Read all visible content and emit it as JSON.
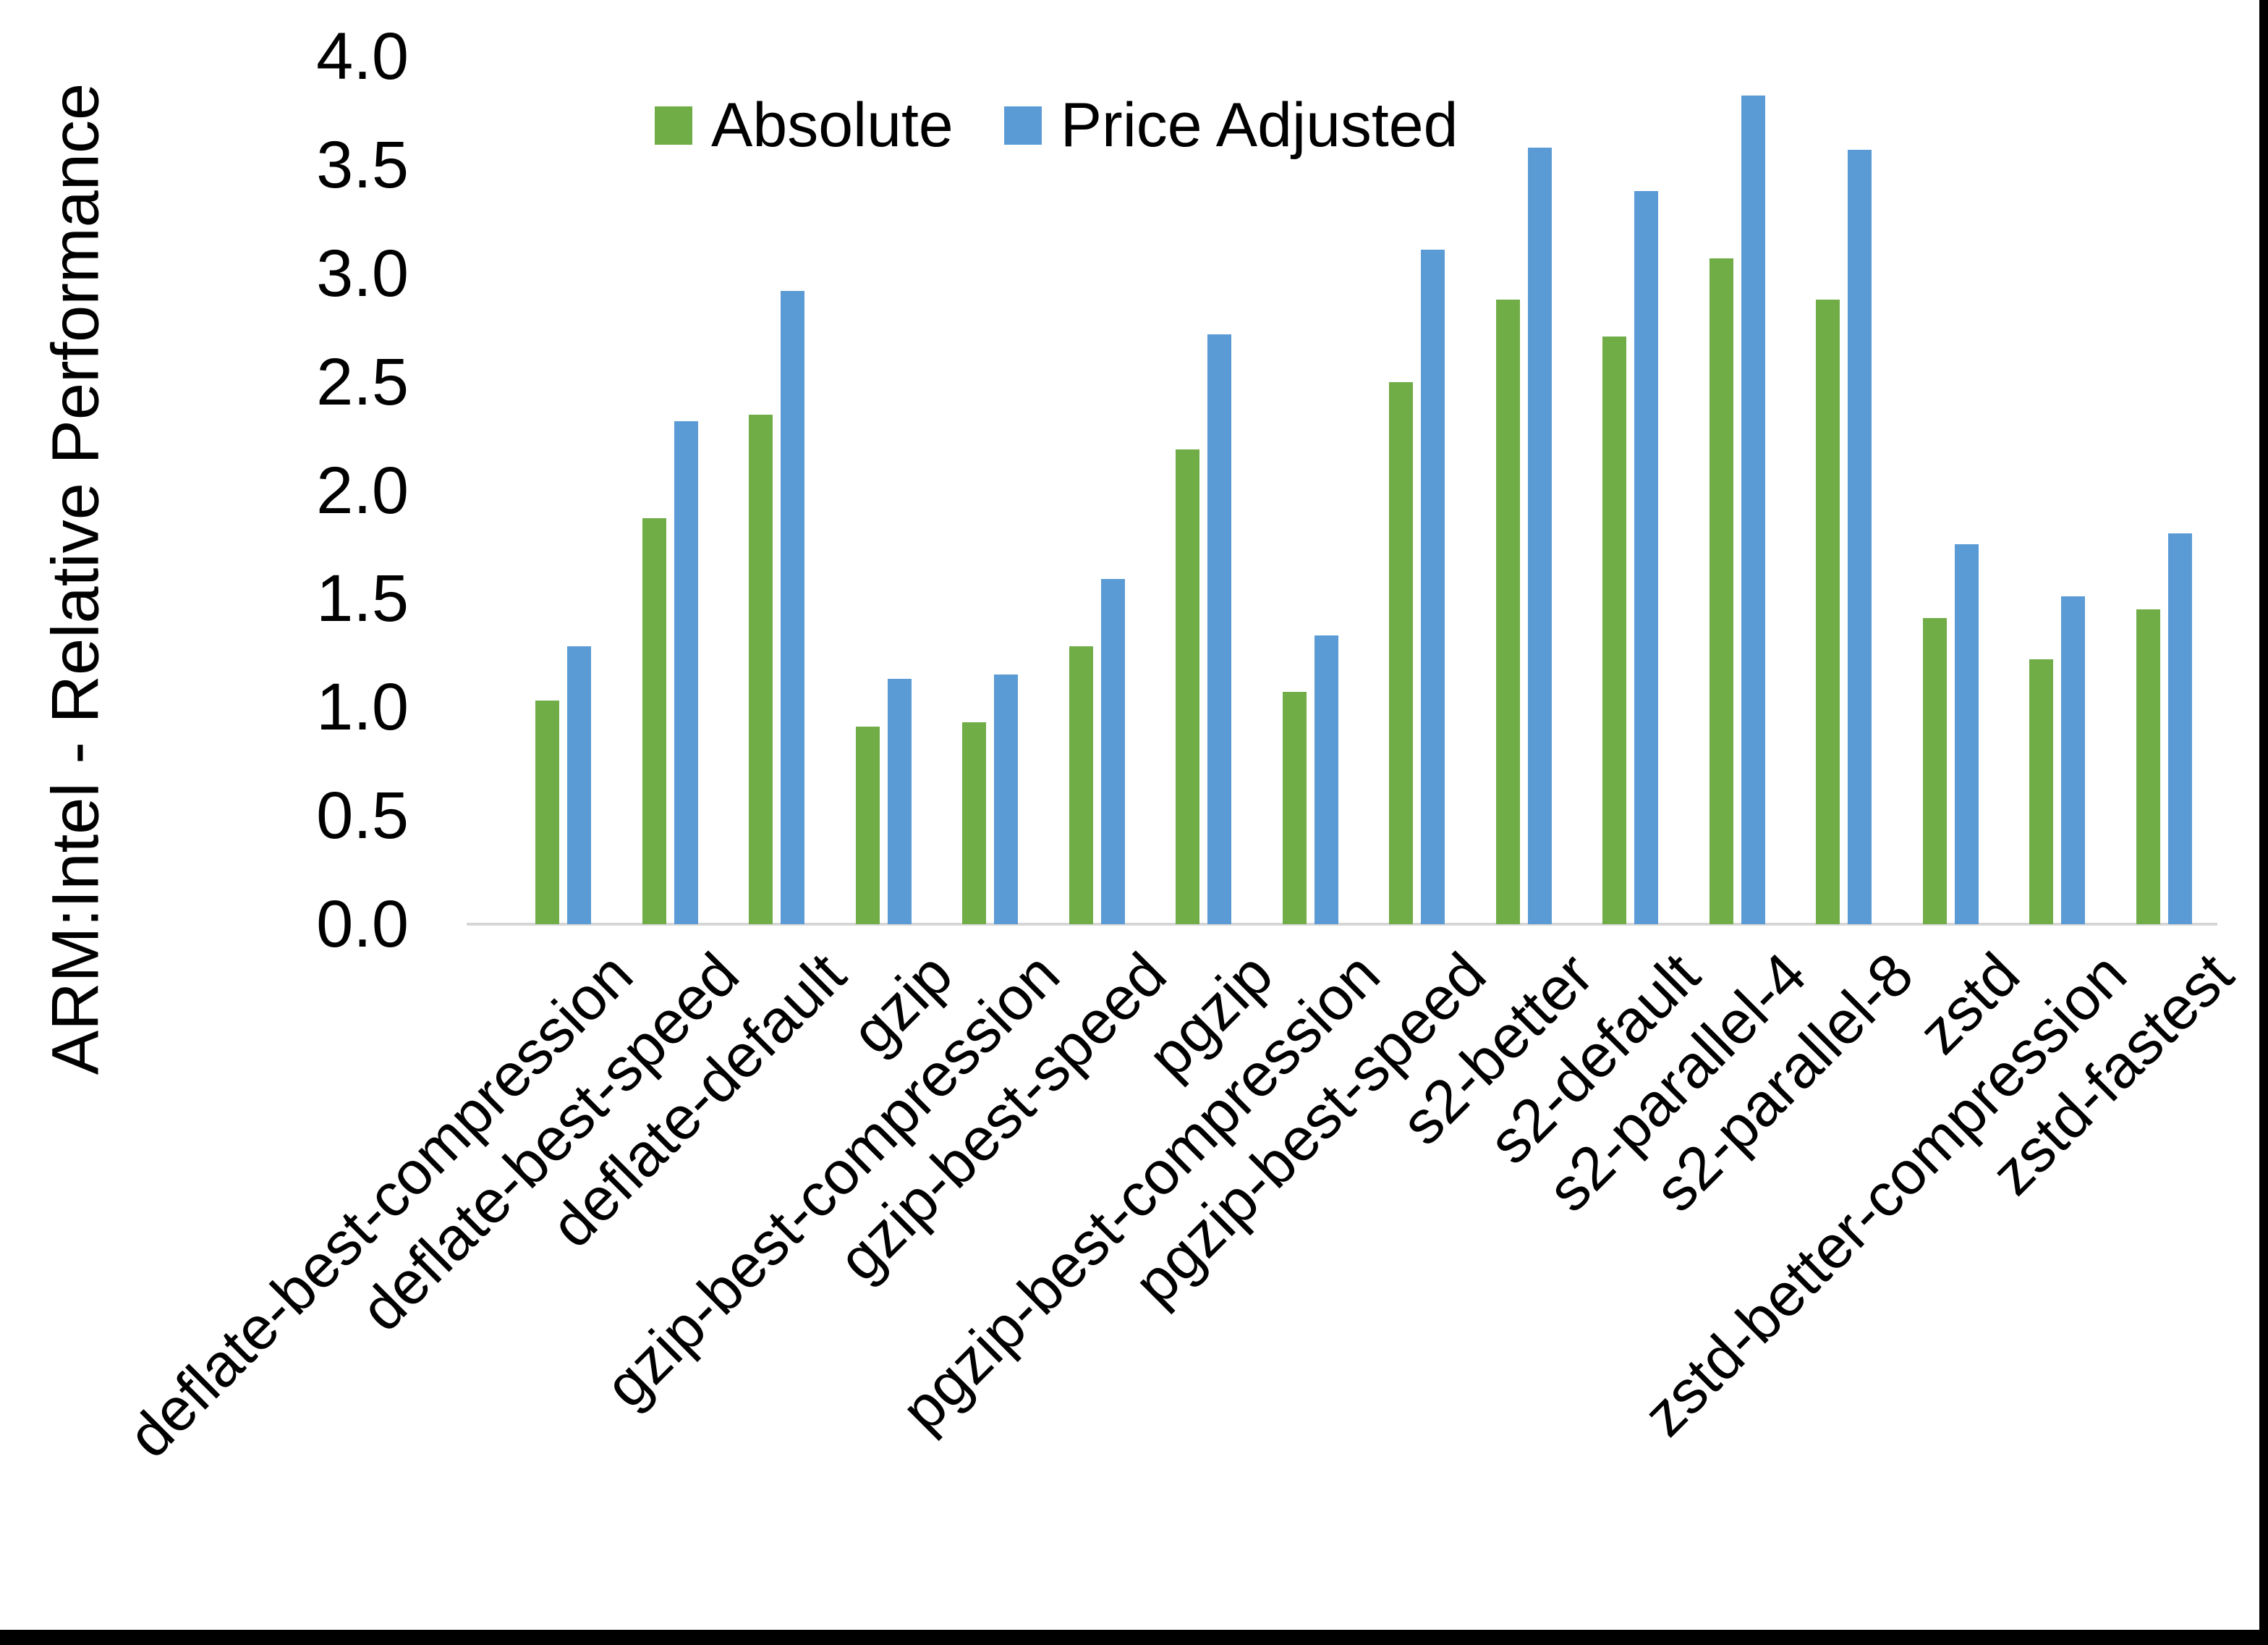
{
  "page": {
    "background": "#ffffff",
    "frame_border_color": "#000000",
    "axis_line_color": "#d6d6d6",
    "text_color": "#000000"
  },
  "chart_data": {
    "type": "bar",
    "title": "",
    "xlabel": "",
    "ylabel": "ARM:Intel - Relative Performance",
    "ylim": [
      0.0,
      4.0
    ],
    "grid": false,
    "legend_position": "top-center",
    "yticks": [
      {
        "value": 0.0,
        "label": "0.0"
      },
      {
        "value": 0.5,
        "label": "0.5"
      },
      {
        "value": 1.0,
        "label": "1.0"
      },
      {
        "value": 1.5,
        "label": "1.5"
      },
      {
        "value": 2.0,
        "label": "2.0"
      },
      {
        "value": 2.5,
        "label": "2.5"
      },
      {
        "value": 3.0,
        "label": "3.0"
      },
      {
        "value": 3.5,
        "label": "3.5"
      },
      {
        "value": 4.0,
        "label": "4.0"
      }
    ],
    "categories": [
      "deflate-best-compression",
      "deflate-best-speed",
      "deflate-default",
      "gzip",
      "gzip-best-compression",
      "gzip-best-speed",
      "pgzip",
      "pgzip-best-compression",
      "pgzip-best-speed",
      "s2-better",
      "s2-default",
      "s2-parallel-4",
      "s2-parallel-8",
      "zstd",
      "zstd-better-compression",
      "zstd-fastest"
    ],
    "series": [
      {
        "name": "Absolute",
        "color": "#70AD47",
        "values": [
          1.03,
          1.87,
          2.35,
          0.91,
          0.93,
          1.28,
          2.19,
          1.07,
          2.5,
          2.88,
          2.71,
          3.07,
          2.88,
          1.41,
          1.22,
          1.45
        ]
      },
      {
        "name": "Price Adjusted",
        "color": "#5B9BD5",
        "values": [
          1.28,
          2.32,
          2.92,
          1.13,
          1.15,
          1.59,
          2.72,
          1.33,
          3.11,
          3.58,
          3.38,
          3.82,
          3.57,
          1.75,
          1.51,
          1.8
        ]
      }
    ]
  }
}
